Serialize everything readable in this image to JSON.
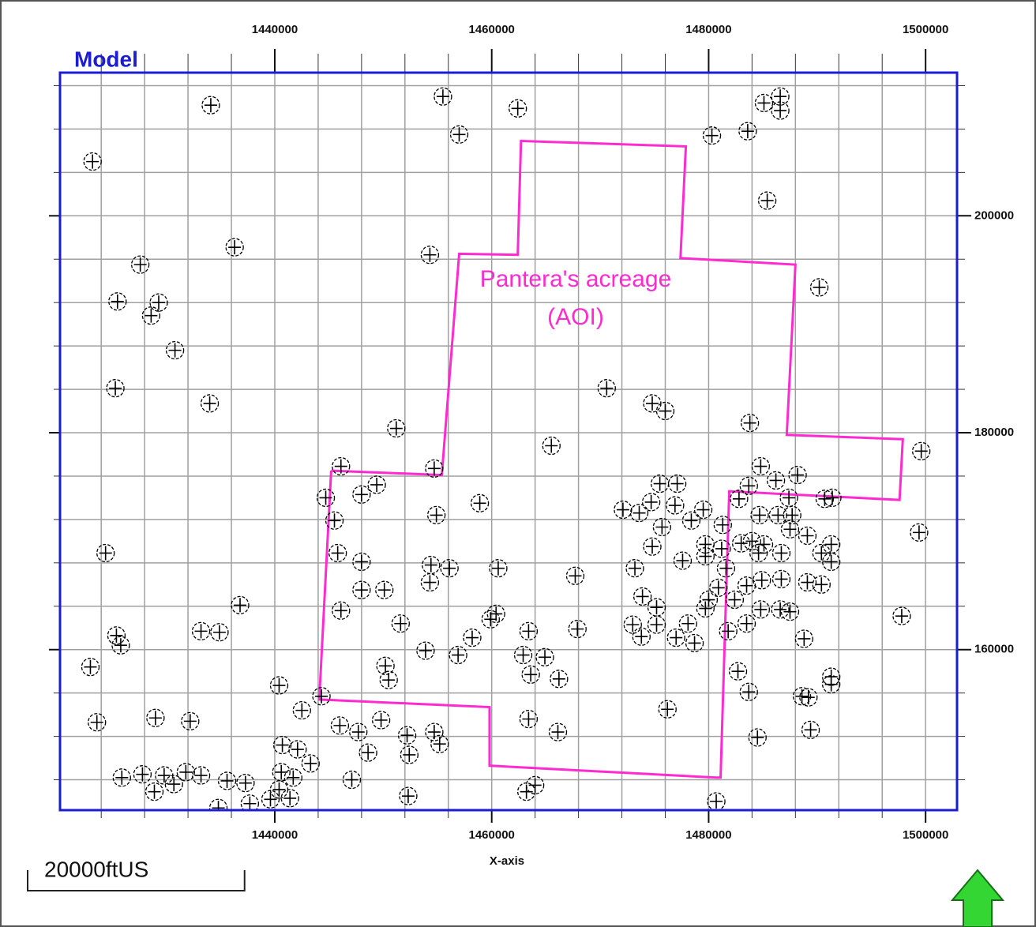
{
  "chart_data": {
    "type": "scatter",
    "title": "Model",
    "x_label": "X-axis",
    "annotation": [
      "Pantera's acreage",
      "(AOI)"
    ],
    "scale_bar": {
      "label": "20000ftUS",
      "length": 20000
    },
    "xlim": [
      1420200,
      1502900
    ],
    "ylim": [
      145200,
      213200
    ],
    "xticks": [
      1440000,
      1460000,
      1480000,
      1500000
    ],
    "yticks": [
      160000,
      180000,
      200000
    ],
    "grid": true,
    "grid_spacing": 4000,
    "marker_color": "#000000",
    "aoi_color": "#ff2ad0",
    "aoi_polygon": {
      "x": [
        1445200,
        1455400,
        1457000,
        1462400,
        1462700,
        1477900,
        1477400,
        1488000,
        1487200,
        1497900,
        1497600,
        1481900,
        1481100,
        1480700,
        1459800,
        1459800,
        1444100,
        1445200
      ],
      "y": [
        176500,
        176100,
        196500,
        196400,
        206900,
        206400,
        196100,
        195500,
        179800,
        179400,
        173800,
        174600,
        148200,
        148200,
        149300,
        154700,
        155400,
        176500
      ]
    },
    "x": [
      1423200,
      1434100,
      1455500,
      1457000,
      1462400,
      1480300,
      1483600,
      1485100,
      1486600,
      1486600,
      1485400,
      1436300,
      1427600,
      1425500,
      1429300,
      1428600,
      1430800,
      1425300,
      1434000,
      1454300,
      1490200,
      1470600,
      1474800,
      1476000,
      1483800,
      1451200,
      1465500,
      1499600,
      1446100,
      1454700,
      1444700,
      1448000,
      1449400,
      1445500,
      1454900,
      1458900,
      1424400,
      1445800,
      1448000,
      1454400,
      1456100,
      1460600,
      1467700,
      1454300,
      1448000,
      1450100,
      1436800,
      1446100,
      1460400,
      1459900,
      1433200,
      1434900,
      1425400,
      1425800,
      1423000,
      1451600,
      1458200,
      1456900,
      1453900,
      1467900,
      1463400,
      1462900,
      1464900,
      1463600,
      1466200,
      1450200,
      1450500,
      1440400,
      1442500,
      1444300,
      1423600,
      1429000,
      1432200,
      1446000,
      1447700,
      1449800,
      1448600,
      1452200,
      1452400,
      1454700,
      1455200,
      1463400,
      1466100,
      1440700,
      1442100,
      1443300,
      1440600,
      1441700,
      1425900,
      1427800,
      1429800,
      1430700,
      1431800,
      1433200,
      1428900,
      1435600,
      1437300,
      1434800,
      1437700,
      1439600,
      1441400,
      1440400,
      1447100,
      1452300,
      1463200,
      1464000,
      1480700,
      1476200,
      1484500,
      1489400,
      1482700,
      1483700,
      1488600,
      1489200,
      1491300,
      1491300,
      1488800,
      1497800,
      1499400,
      1472100,
      1473600,
      1474700,
      1475500,
      1477100,
      1476900,
      1475700,
      1478400,
      1479500,
      1474800,
      1477600,
      1473200,
      1473900,
      1475200,
      1473000,
      1475200,
      1477000,
      1478100,
      1478700,
      1473800,
      1479700,
      1479700,
      1480000,
      1479700,
      1480900,
      1481600,
      1482400,
      1481800,
      1482800,
      1483700,
      1484800,
      1486200,
      1488200,
      1487400,
      1490700,
      1491400,
      1484700,
      1486400,
      1487700,
      1483000,
      1484000,
      1485100,
      1486700,
      1489100,
      1490400,
      1491300,
      1491300,
      1484900,
      1486700,
      1489100,
      1490400,
      1483500,
      1484800,
      1486600,
      1487500,
      1483500,
      1484600,
      1487500,
      1481300,
      1481200
    ],
    "values": [
      205000,
      210200,
      211000,
      207500,
      209900,
      207400,
      207800,
      210400,
      211000,
      209700,
      201400,
      197100,
      195500,
      192100,
      192000,
      190800,
      187600,
      184100,
      182700,
      196400,
      193400,
      184100,
      182700,
      182000,
      180900,
      180400,
      178800,
      178300,
      176900,
      176700,
      174000,
      174300,
      175200,
      171900,
      172400,
      173500,
      168900,
      168900,
      168100,
      167800,
      167500,
      167500,
      166800,
      166200,
      165500,
      165500,
      164100,
      163600,
      163300,
      162800,
      161700,
      161600,
      161300,
      160400,
      158400,
      162400,
      161100,
      159500,
      159900,
      161900,
      161700,
      159500,
      159300,
      157700,
      157300,
      158500,
      157200,
      156700,
      154400,
      155700,
      153300,
      153700,
      153400,
      153000,
      152400,
      153500,
      150500,
      152100,
      150300,
      152400,
      151300,
      153600,
      152400,
      151200,
      150800,
      149500,
      148700,
      148200,
      148200,
      148500,
      148400,
      147600,
      148700,
      148400,
      146900,
      147900,
      147700,
      145400,
      145800,
      146200,
      146300,
      147100,
      148000,
      146500,
      146900,
      147500,
      146000,
      154500,
      151900,
      152600,
      158000,
      156100,
      155700,
      155600,
      157500,
      156800,
      161000,
      163100,
      170800,
      172900,
      172600,
      173600,
      175300,
      175300,
      173300,
      171300,
      171900,
      172900,
      169500,
      168200,
      167500,
      164900,
      163900,
      162300,
      162300,
      161100,
      162400,
      160600,
      161200,
      169700,
      168600,
      164600,
      163800,
      165700,
      167500,
      164600,
      161700,
      173900,
      175100,
      176900,
      175600,
      176100,
      174000,
      173900,
      174000,
      172400,
      172400,
      172400,
      169800,
      170000,
      169700,
      168900,
      170500,
      168900,
      169700,
      168100,
      166400,
      166500,
      166200,
      166000,
      165900,
      163700,
      163700,
      163500,
      162400,
      168900,
      171100,
      171500,
      169300
    ]
  }
}
